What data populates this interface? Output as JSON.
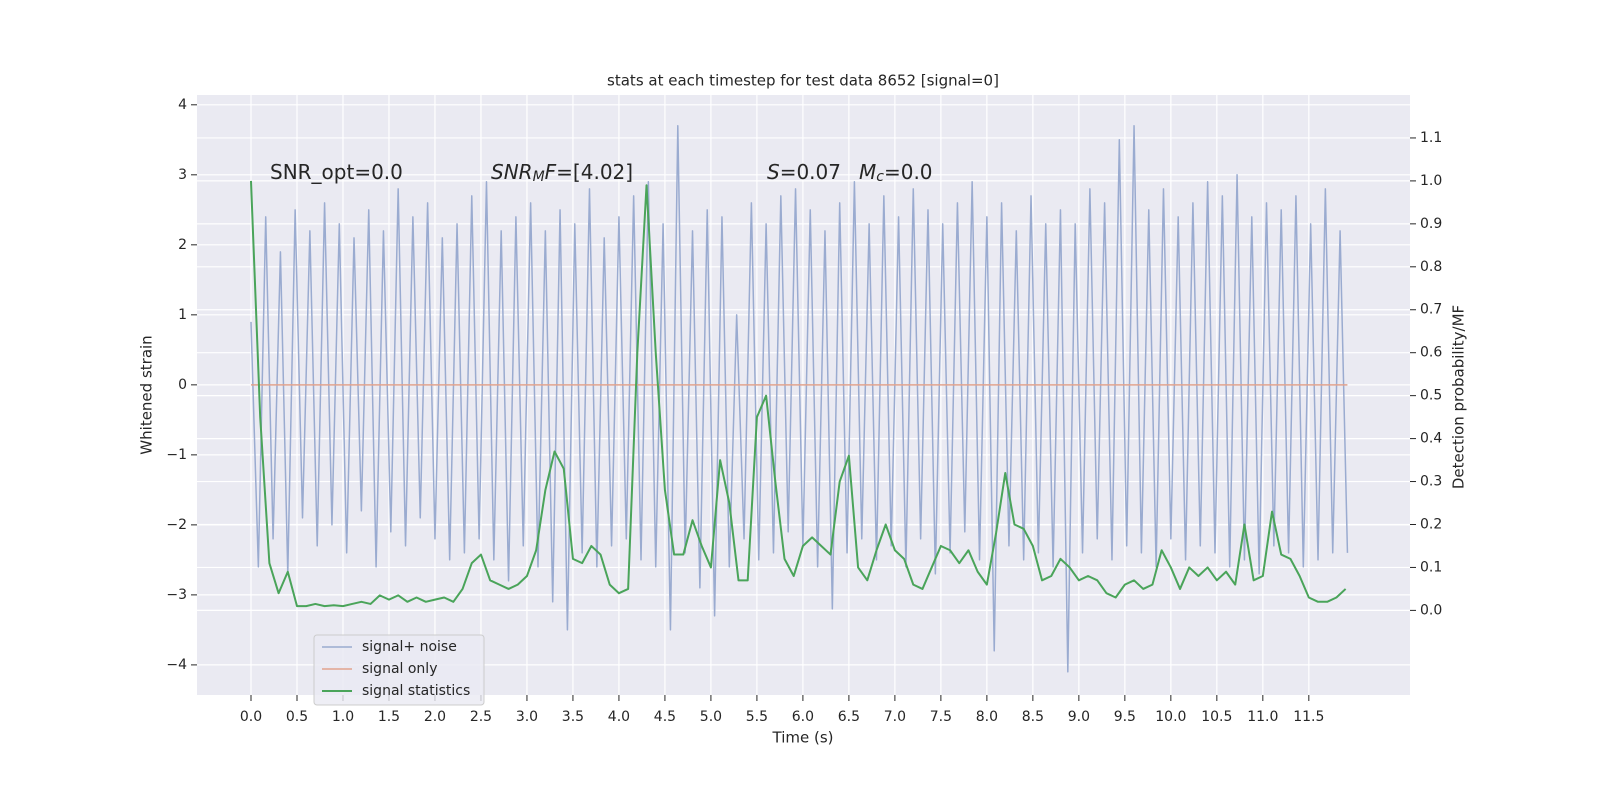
{
  "chart_data": {
    "type": "line",
    "title": "stats at each timestep for test data 8652 [signal=0]",
    "xlabel": "Time (s)",
    "ylabel": "Whitened strain",
    "y2label": "Detection probability/MF",
    "annotations": [
      {
        "parts": [
          {
            "text": "SNR_opt=0.0"
          }
        ]
      },
      {
        "parts": [
          {
            "text": "SNR",
            "italic": true
          },
          {
            "text": "M",
            "italic": true,
            "sub": true
          },
          {
            "text": "F",
            "italic": true
          },
          {
            "text": "=[4.02]"
          }
        ]
      },
      {
        "parts": [
          {
            "text": "S",
            "italic": true
          },
          {
            "text": "=0.07"
          }
        ]
      },
      {
        "parts": [
          {
            "text": "M",
            "italic": true
          },
          {
            "text": "c",
            "italic": true,
            "sub": true
          },
          {
            "text": "=0.0"
          }
        ]
      }
    ],
    "xlim": [
      -0.587,
      12.6
    ],
    "ylim": [
      -4.43,
      4.14
    ],
    "y2lim": [
      -0.197,
      1.2
    ],
    "xticks": [
      {
        "value": 0,
        "label": "0.0"
      },
      {
        "value": 0.5,
        "label": "0.5"
      },
      {
        "value": 1,
        "label": "1.0"
      },
      {
        "value": 1.5,
        "label": "1.5"
      },
      {
        "value": 2,
        "label": "2.0"
      },
      {
        "value": 2.5,
        "label": "2.5"
      },
      {
        "value": 3,
        "label": "3.0"
      },
      {
        "value": 3.5,
        "label": "3.5"
      },
      {
        "value": 4,
        "label": "4.0"
      },
      {
        "value": 4.5,
        "label": "4.5"
      },
      {
        "value": 5,
        "label": "5.0"
      },
      {
        "value": 5.5,
        "label": "5.5"
      },
      {
        "value": 6,
        "label": "6.0"
      },
      {
        "value": 6.5,
        "label": "6.5"
      },
      {
        "value": 7,
        "label": "7.0"
      },
      {
        "value": 7.5,
        "label": "7.5"
      },
      {
        "value": 8,
        "label": "8.0"
      },
      {
        "value": 8.5,
        "label": "8.5"
      },
      {
        "value": 9,
        "label": "9.0"
      },
      {
        "value": 9.5,
        "label": "9.5"
      },
      {
        "value": 10,
        "label": "10.0"
      },
      {
        "value": 10.5,
        "label": "10.5"
      },
      {
        "value": 11,
        "label": "11.0"
      },
      {
        "value": 11.5,
        "label": "11.5"
      }
    ],
    "yticks": [
      {
        "value": -4,
        "label": "−4"
      },
      {
        "value": -3,
        "label": "−3"
      },
      {
        "value": -2,
        "label": "−2"
      },
      {
        "value": -1,
        "label": "−1"
      },
      0,
      1,
      2,
      3,
      4
    ],
    "y2ticks": [
      {
        "value": 0,
        "label": "0.0"
      },
      {
        "value": 0.1,
        "label": "0.1"
      },
      {
        "value": 0.2,
        "label": "0.2"
      },
      {
        "value": 0.3,
        "label": "0.3"
      },
      {
        "value": 0.4,
        "label": "0.4"
      },
      {
        "value": 0.5,
        "label": "0.5"
      },
      {
        "value": 0.6,
        "label": "0.6"
      },
      {
        "value": 0.7,
        "label": "0.7"
      },
      {
        "value": 0.8,
        "label": "0.8"
      },
      {
        "value": 0.9,
        "label": "0.9"
      },
      {
        "value": 1,
        "label": "1.0"
      },
      {
        "value": 1.1,
        "label": "1.1"
      }
    ],
    "grid": true,
    "legend": "lower left",
    "series": [
      {
        "name": "signal+ noise",
        "color": "#9aabd0",
        "x": [
          0,
          0.08,
          0.16,
          0.24,
          0.32,
          0.4,
          0.48,
          0.56,
          0.64,
          0.72,
          0.8,
          0.88,
          0.96,
          1.04,
          1.12,
          1.2,
          1.28,
          1.36,
          1.44,
          1.52,
          1.6,
          1.68,
          1.76,
          1.84,
          1.92,
          2,
          2.08,
          2.16,
          2.24,
          2.32,
          2.4,
          2.48,
          2.56,
          2.64,
          2.72,
          2.8,
          2.88,
          2.96,
          3.04,
          3.12,
          3.2,
          3.28,
          3.36,
          3.44,
          3.52,
          3.6,
          3.68,
          3.76,
          3.84,
          3.92,
          4,
          4.08,
          4.16,
          4.24,
          4.32,
          4.4,
          4.48,
          4.56,
          4.64,
          4.72,
          4.8,
          4.88,
          4.96,
          5.04,
          5.12,
          5.2,
          5.28,
          5.36,
          5.44,
          5.52,
          5.6,
          5.68,
          5.76,
          5.84,
          5.92,
          6,
          6.08,
          6.16,
          6.24,
          6.32,
          6.4,
          6.48,
          6.56,
          6.64,
          6.72,
          6.8,
          6.88,
          6.96,
          7.04,
          7.12,
          7.2,
          7.28,
          7.36,
          7.44,
          7.52,
          7.6,
          7.68,
          7.76,
          7.84,
          7.92,
          8,
          8.08,
          8.16,
          8.24,
          8.32,
          8.4,
          8.48,
          8.56,
          8.64,
          8.72,
          8.8,
          8.88,
          8.96,
          9.04,
          9.12,
          9.2,
          9.28,
          9.36,
          9.44,
          9.52,
          9.6,
          9.68,
          9.76,
          9.84,
          9.92,
          10,
          10.08,
          10.16,
          10.24,
          10.32,
          10.4,
          10.48,
          10.56,
          10.64,
          10.72,
          10.8,
          10.88,
          10.96,
          11.04,
          11.12,
          11.2,
          11.28,
          11.36,
          11.44,
          11.52,
          11.6,
          11.68,
          11.76,
          11.84,
          11.92
        ],
        "values": [
          0.9,
          -2.6,
          2.4,
          -2.2,
          1.9,
          -2.7,
          2.5,
          -1.9,
          2.2,
          -2.3,
          2.6,
          -2.0,
          2.3,
          -2.4,
          2.1,
          -1.8,
          2.5,
          -2.6,
          2.2,
          -2.1,
          2.8,
          -2.3,
          2.4,
          -1.9,
          2.6,
          -2.2,
          2.1,
          -2.5,
          2.3,
          -2.4,
          2.7,
          -2.2,
          2.9,
          -2.5,
          2.2,
          -2.8,
          2.4,
          -2.3,
          2.6,
          -2.6,
          2.2,
          -3.1,
          2.5,
          -3.5,
          2.3,
          -2.4,
          2.8,
          -2.6,
          2.1,
          -2.3,
          2.4,
          -2.2,
          2.7,
          -2.5,
          2.9,
          -2.6,
          2.3,
          -3.5,
          3.7,
          -2.4,
          2.2,
          -2.9,
          2.5,
          -3.3,
          2.4,
          -2.6,
          1.0,
          -2.2,
          2.6,
          -2.5,
          2.3,
          -2.4,
          2.7,
          -2.1,
          2.8,
          -2.3,
          2.5,
          -2.6,
          2.2,
          -3.2,
          2.6,
          -2.4,
          2.9,
          -2.2,
          2.3,
          -2.5,
          2.7,
          -2.3,
          2.4,
          -2.6,
          2.8,
          -2.2,
          2.5,
          -2.7,
          2.3,
          -2.4,
          2.6,
          -2.1,
          2.9,
          -2.5,
          2.4,
          -3.8,
          2.6,
          -2.3,
          2.2,
          -2.5,
          2.7,
          -2.4,
          2.3,
          -2.6,
          2.5,
          -4.1,
          2.3,
          -2.4,
          2.8,
          -2.2,
          2.6,
          -2.5,
          3.5,
          -2.3,
          3.7,
          -2.4,
          2.5,
          -2.6,
          2.8,
          -2.2,
          2.4,
          -2.5,
          2.6,
          -2.3,
          2.9,
          -2.4,
          2.7,
          -2.6,
          3.0,
          -2.5,
          2.4,
          -2.7,
          2.6,
          -2.3,
          2.5,
          -2.4,
          2.7,
          -2.6,
          2.3,
          -2.5,
          2.8,
          -2.4,
          2.2,
          -2.4
        ]
      },
      {
        "name": "signal only",
        "color": "#e1a38e",
        "x": [
          0,
          11.92
        ],
        "values": [
          0,
          0
        ]
      },
      {
        "name": "signal statistics",
        "color": "#4aa45a",
        "axis": "y2",
        "x": [
          0,
          0.1,
          0.2,
          0.3,
          0.4,
          0.5,
          0.6,
          0.7,
          0.8,
          0.9,
          1,
          1.1,
          1.2,
          1.3,
          1.4,
          1.5,
          1.6,
          1.7,
          1.8,
          1.9,
          2,
          2.1,
          2.2,
          2.3,
          2.4,
          2.5,
          2.6,
          2.7,
          2.8,
          2.9,
          3,
          3.1,
          3.2,
          3.3,
          3.4,
          3.5,
          3.6,
          3.7,
          3.8,
          3.9,
          4,
          4.1,
          4.2,
          4.3,
          4.4,
          4.5,
          4.6,
          4.7,
          4.8,
          4.9,
          5,
          5.1,
          5.2,
          5.3,
          5.4,
          5.5,
          5.6,
          5.7,
          5.8,
          5.9,
          6,
          6.1,
          6.2,
          6.3,
          6.4,
          6.5,
          6.6,
          6.7,
          6.8,
          6.9,
          7,
          7.1,
          7.2,
          7.3,
          7.4,
          7.5,
          7.6,
          7.7,
          7.8,
          7.9,
          8,
          8.1,
          8.2,
          8.3,
          8.4,
          8.5,
          8.6,
          8.7,
          8.8,
          8.9,
          9,
          9.1,
          9.2,
          9.3,
          9.4,
          9.5,
          9.6,
          9.7,
          9.8,
          9.9,
          10,
          10.1,
          10.2,
          10.3,
          10.4,
          10.5,
          10.6,
          10.7,
          10.8,
          10.9,
          11,
          11.1,
          11.2,
          11.3,
          11.4,
          11.5,
          11.6,
          11.7,
          11.8,
          11.9
        ],
        "values": [
          1.0,
          0.45,
          0.11,
          0.04,
          0.09,
          0.01,
          0.01,
          0.015,
          0.01,
          0.012,
          0.01,
          0.015,
          0.02,
          0.015,
          0.035,
          0.025,
          0.035,
          0.02,
          0.03,
          0.02,
          0.025,
          0.03,
          0.02,
          0.05,
          0.11,
          0.13,
          0.07,
          0.06,
          0.05,
          0.06,
          0.08,
          0.14,
          0.28,
          0.37,
          0.33,
          0.12,
          0.11,
          0.15,
          0.13,
          0.06,
          0.04,
          0.05,
          0.6,
          0.99,
          0.6,
          0.28,
          0.13,
          0.13,
          0.21,
          0.15,
          0.1,
          0.35,
          0.25,
          0.07,
          0.07,
          0.45,
          0.5,
          0.3,
          0.12,
          0.08,
          0.15,
          0.17,
          0.15,
          0.13,
          0.3,
          0.36,
          0.1,
          0.07,
          0.14,
          0.2,
          0.14,
          0.12,
          0.06,
          0.05,
          0.1,
          0.15,
          0.14,
          0.11,
          0.14,
          0.09,
          0.06,
          0.18,
          0.32,
          0.2,
          0.19,
          0.15,
          0.07,
          0.08,
          0.12,
          0.1,
          0.07,
          0.08,
          0.07,
          0.04,
          0.03,
          0.06,
          0.07,
          0.05,
          0.06,
          0.14,
          0.1,
          0.05,
          0.1,
          0.08,
          0.1,
          0.07,
          0.09,
          0.06,
          0.2,
          0.07,
          0.08,
          0.23,
          0.13,
          0.12,
          0.08,
          0.03,
          0.02,
          0.02,
          0.03,
          0.05
        ]
      }
    ]
  }
}
